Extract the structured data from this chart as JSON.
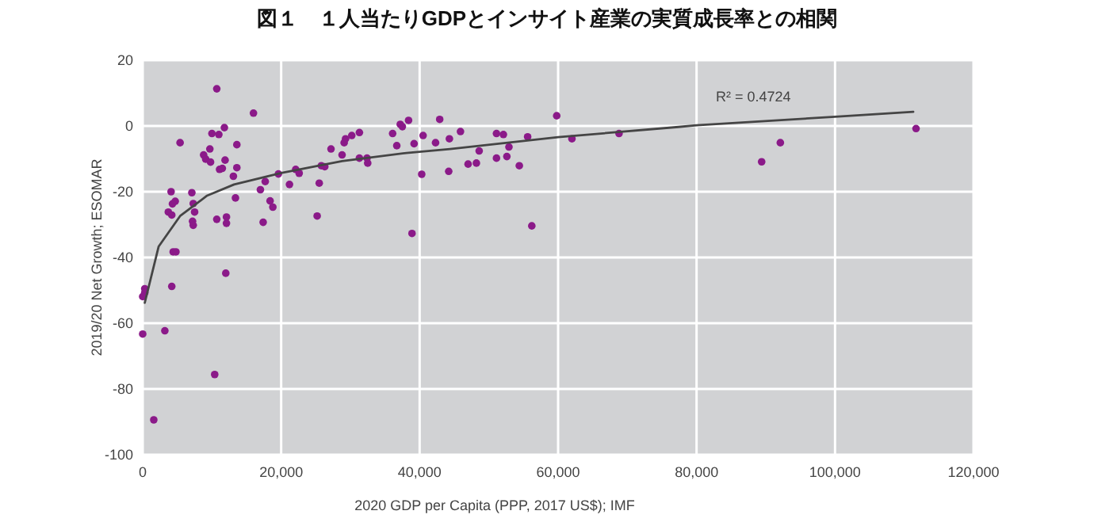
{
  "chart_data": {
    "type": "scatter",
    "title": "図１　１人当たりGDPとインサイト産業の実質成長率との相関",
    "xlabel": "2020 GDP per Capita (PPP, 2017 US$); IMF",
    "ylabel": "2019/20 Net Growth; ESOMAR",
    "annotations": [
      "R² = 0.4724"
    ],
    "xlim": [
      0,
      120000
    ],
    "ylim": [
      -100,
      20
    ],
    "xticks": [
      0,
      {
        "value": 20000,
        "label": "20,000"
      },
      {
        "value": 40000,
        "label": "40,000"
      },
      {
        "value": 60000,
        "label": "60,000"
      },
      {
        "value": 80000,
        "label": "80,000"
      },
      {
        "value": 100000,
        "label": "100,000"
      },
      {
        "value": 120000,
        "label": "120,000"
      }
    ],
    "yticks": [
      -100,
      -80,
      -60,
      -40,
      -20,
      0,
      20
    ],
    "grid": true,
    "line_style": "solid",
    "series": [
      {
        "marker": "circle",
        "color": "#8b1a89",
        "x": [
          10700,
          16000,
          5400,
          10000,
          11000,
          11800,
          9700,
          13600,
          8800,
          9100,
          9800,
          11900,
          11100,
          11500,
          13600,
          13100,
          4100,
          7100,
          4700,
          4300,
          7300,
          3700,
          4200,
          7500,
          7200,
          7300,
          10700,
          12100,
          12100,
          13400,
          17000,
          17700,
          18400,
          18800,
          17400,
          19600,
          21200,
          22100,
          22600,
          25500,
          25200,
          25800,
          26300,
          27200,
          28800,
          29100,
          29300,
          30200,
          31300,
          31300,
          32500,
          32400,
          36100,
          36700,
          37200,
          37500,
          38400,
          39200,
          38900,
          40500,
          40300,
          42300,
          42900,
          44200,
          4400,
          4800,
          12000,
          4200,
          300,
          300,
          0,
          0,
          3200,
          10400,
          1600,
          44300,
          45900,
          47000,
          48200,
          48600,
          51100,
          52100,
          51100,
          52900,
          52600,
          54400,
          55600,
          56200,
          59800,
          62000,
          68800,
          92100,
          89400,
          111700
        ],
        "values": [
          11.3,
          3.9,
          -5.1,
          -2.3,
          -2.6,
          -0.5,
          -7.0,
          -5.7,
          -8.8,
          -10.1,
          -11.0,
          -10.4,
          -13.2,
          -12.9,
          -12.7,
          -15.3,
          -20,
          -20.3,
          -22.9,
          -23.7,
          -23.6,
          -26.2,
          -27.1,
          -26.2,
          -29,
          -30.2,
          -28.4,
          -27.7,
          -29.6,
          -21.9,
          -19.4,
          -16.9,
          -22.8,
          -24.7,
          -29.3,
          -14.6,
          -17.8,
          -13.2,
          -14.4,
          -17.4,
          -27.4,
          -12.1,
          -12.4,
          -7.0,
          -8.8,
          -5.1,
          -3.9,
          -2.9,
          -2.0,
          -9.8,
          -11.3,
          -9.8,
          -2.3,
          -6.0,
          0.5,
          -0.2,
          1.7,
          -5.4,
          -32.7,
          -2.9,
          -14.7,
          -5.1,
          2.0,
          -13.8,
          -38.3,
          -38.3,
          -44.8,
          -48.8,
          -49.5,
          -50.7,
          -51.9,
          -63.3,
          -62.3,
          -75.6,
          -89.4,
          -3.9,
          -1.7,
          -11.6,
          -11.3,
          -7.6,
          -2.3,
          -2.6,
          -9.8,
          -6.4,
          -9.3,
          -12.1,
          -3.3,
          -30.4,
          3.1,
          -3.9,
          -2.3,
          -5.1,
          -10.9,
          -0.8
        ]
      },
      {
        "type": "line",
        "marker": "none",
        "color": "#454545",
        "x": [
          300,
          2300,
          5400,
          9300,
          13200,
          20000,
          28800,
          38100,
          44400,
          60000,
          77400,
          80000,
          100000,
          111300
        ],
        "values": [
          -53.8,
          -36.7,
          -27.4,
          -21.2,
          -17.8,
          -14.3,
          -10.7,
          -8.2,
          -7.0,
          -3.4,
          -0.3,
          0.2,
          2.8,
          4.3
        ]
      }
    ]
  }
}
